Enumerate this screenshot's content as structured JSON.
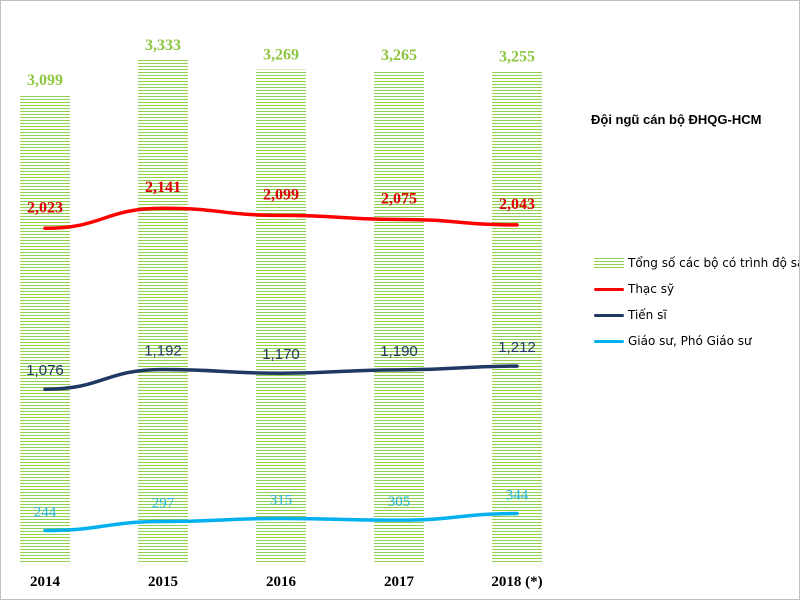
{
  "title": "Đội ngũ cán bộ ĐHQG-HCM",
  "colors": {
    "total": "#92d050",
    "total_label": "#8ec63f",
    "thac_sy": "#ff0000",
    "thac_sy_label": "#e00000",
    "tien_si": "#1f3864",
    "tien_si_label": "#1f3864",
    "giao_su": "#00b0f0",
    "giao_su_label": "#25b6e6"
  },
  "legend": [
    {
      "label": "Tổng số các bộ có trình độ sau đại học",
      "swatch": "hatch",
      "color": "#92d050"
    },
    {
      "label": "Thạc sỹ",
      "swatch": "line",
      "color": "#ff0000"
    },
    {
      "label": "Tiến sĩ",
      "swatch": "line",
      "color": "#1f3864"
    },
    {
      "label": "Giáo sư, Phó Giáo sư",
      "swatch": "line",
      "color": "#00b0f0"
    }
  ],
  "chart_data": {
    "type": "bar+line",
    "title": "Đội ngũ cán bộ ĐHQG-HCM",
    "categories": [
      "2014",
      "2015",
      "2016",
      "2017",
      "2018 (*)"
    ],
    "bars": {
      "name": "Tổng số các bộ có trình độ sau đại học",
      "values": [
        3099,
        3333,
        3269,
        3265,
        3255
      ],
      "labels": [
        "3,099",
        "3,333",
        "3,269",
        "3,265",
        "3,255"
      ]
    },
    "lines": [
      {
        "name": "Thạc sỹ",
        "values": [
          2023,
          2141,
          2099,
          2075,
          2043
        ],
        "labels": [
          "2,023",
          "2,141",
          "2,099",
          "2,075",
          "2,043"
        ]
      },
      {
        "name": "Tiến sĩ",
        "values": [
          1076,
          1192,
          1170,
          1190,
          1212
        ],
        "labels": [
          "1,076",
          "1,192",
          "1,170",
          "1,190",
          "1,212"
        ]
      },
      {
        "name": "Giáo sư, Phó Giáo sư",
        "values": [
          244,
          297,
          315,
          305,
          344
        ],
        "labels": [
          "244",
          "297",
          "315",
          "305",
          "344"
        ]
      }
    ],
    "xlabel": "",
    "ylabel": "",
    "ylim": [
      0,
      3500
    ],
    "grid": false,
    "legend_position": "right"
  }
}
